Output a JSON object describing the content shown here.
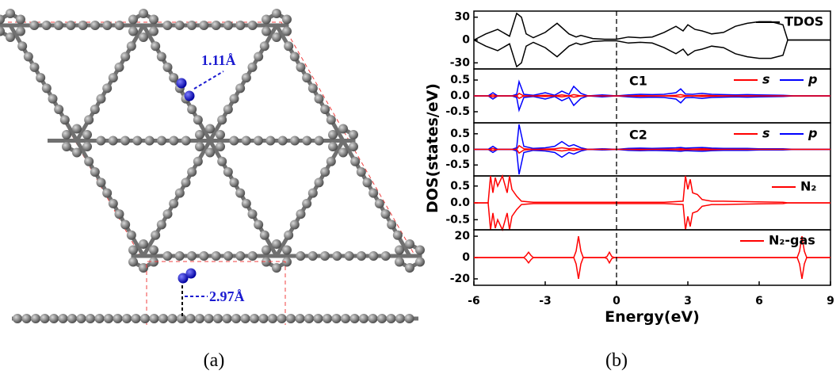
{
  "figure": {
    "panel_a_label": "(a)",
    "panel_b_label": "(b)",
    "bond_label_top": "1.11Å",
    "bond_label_side": "2.97Å",
    "ylabel": "DOS(states/eV)",
    "fermi_line": 0
  },
  "chart_data": [
    {
      "type": "line",
      "xlim": [
        -6,
        9
      ],
      "ylim": [
        -38,
        38
      ],
      "yticks": [
        30,
        0,
        -30
      ],
      "legend": "upper right",
      "x": [
        -6,
        -5.5,
        -5,
        -4.5,
        -4.2,
        -4,
        -3.8,
        -3.5,
        -3,
        -2.5,
        -2,
        -1.7,
        -1.5,
        -1,
        -0.5,
        0,
        0.5,
        1,
        1.5,
        2,
        2.5,
        2.8,
        3,
        3.3,
        3.6,
        4,
        4.5,
        5,
        5.5,
        6,
        6.5,
        7,
        7.2,
        7.5,
        8,
        9
      ],
      "series": [
        {
          "name": "TDOS",
          "color": "#000000",
          "values": [
            0,
            8,
            14,
            5,
            35,
            30,
            8,
            3,
            10,
            22,
            8,
            4,
            6,
            2,
            1,
            1,
            4,
            3,
            4,
            10,
            18,
            12,
            20,
            14,
            12,
            8,
            10,
            18,
            22,
            24,
            24,
            20,
            0,
            0,
            0,
            0
          ]
        },
        {
          "color": "#000000",
          "values": [
            0,
            -8,
            -14,
            -5,
            -35,
            -30,
            -8,
            -3,
            -10,
            -22,
            -8,
            -4,
            -6,
            -2,
            -1,
            -1,
            -4,
            -3,
            -4,
            -10,
            -18,
            -12,
            -20,
            -14,
            -12,
            -8,
            -10,
            -18,
            -22,
            -24,
            -24,
            -20,
            0,
            0,
            0,
            0
          ]
        }
      ]
    },
    {
      "type": "line",
      "label": "C1",
      "xlim": [
        -6,
        9
      ],
      "ylim": [
        -0.85,
        0.85
      ],
      "yticks": [
        0.5,
        {
          "value": 0,
          "label": "0.0"
        },
        -0.5
      ],
      "legend": "upper right",
      "x": [
        -6,
        -5.4,
        -5.2,
        -5.0,
        -4.4,
        -4.2,
        -4.1,
        -3.9,
        -3.5,
        -3.0,
        -2.6,
        -2.3,
        -2.0,
        -1.8,
        -1.5,
        -1.2,
        -0.6,
        0,
        0.5,
        1,
        1.5,
        2,
        2.5,
        2.7,
        2.9,
        3.2,
        3.6,
        4,
        4.5,
        5,
        5.5,
        6,
        7,
        7.5,
        9
      ],
      "series": [
        {
          "name": "s",
          "color": "#ff0000",
          "values": [
            0,
            0,
            0.03,
            0,
            0,
            0,
            0.08,
            0,
            0,
            0.02,
            0,
            0.03,
            0,
            0.04,
            0,
            0,
            0,
            0,
            0,
            0.01,
            0,
            0,
            0.02,
            0.04,
            0.01,
            0,
            0.02,
            0.01,
            0,
            0,
            0,
            0,
            0,
            0,
            0
          ]
        },
        {
          "name": "p",
          "color": "#0000ff",
          "values": [
            0,
            0,
            0.1,
            0,
            0,
            0.05,
            0.45,
            0.05,
            0.02,
            0.1,
            0.02,
            0.15,
            0.05,
            0.3,
            0.08,
            0,
            0.03,
            0,
            0.03,
            0.05,
            0.04,
            0.05,
            0.1,
            0.22,
            0.06,
            0.05,
            0.08,
            0.05,
            0.04,
            0.03,
            0.04,
            0.03,
            0.02,
            0,
            0
          ]
        },
        {
          "color": "#0000ff",
          "values": [
            0,
            0,
            -0.1,
            0,
            0,
            -0.05,
            -0.45,
            -0.05,
            -0.02,
            -0.1,
            -0.02,
            -0.15,
            -0.05,
            -0.3,
            -0.08,
            0,
            -0.03,
            0,
            -0.03,
            -0.05,
            -0.04,
            -0.05,
            -0.1,
            -0.22,
            -0.06,
            -0.05,
            -0.08,
            -0.05,
            -0.04,
            -0.03,
            -0.04,
            -0.03,
            -0.02,
            0,
            0
          ]
        },
        {
          "color": "#ff0000",
          "values": [
            0,
            0,
            -0.03,
            0,
            0,
            0,
            -0.08,
            0,
            0,
            -0.02,
            0,
            -0.03,
            0,
            -0.04,
            0,
            0,
            0,
            0,
            0,
            -0.01,
            0,
            0,
            -0.02,
            -0.04,
            -0.01,
            0,
            -0.02,
            -0.01,
            0,
            0,
            0,
            0,
            0,
            0,
            0
          ]
        }
      ]
    },
    {
      "type": "line",
      "label": "C2",
      "xlim": [
        -6,
        9
      ],
      "ylim": [
        -0.85,
        0.85
      ],
      "yticks": [
        0.5,
        {
          "value": 0,
          "label": "0.0"
        },
        -0.5
      ],
      "legend": "upper right",
      "x": [
        -6,
        -5.4,
        -5.2,
        -5.0,
        -4.4,
        -4.2,
        -4.1,
        -3.9,
        -3.5,
        -3.0,
        -2.6,
        -2.3,
        -2.0,
        -1.8,
        -1.5,
        -1.2,
        -0.6,
        0,
        0.5,
        1,
        1.5,
        2,
        2.5,
        2.7,
        2.9,
        3.2,
        3.6,
        4,
        4.5,
        5,
        5.5,
        6,
        7,
        7.5,
        9
      ],
      "series": [
        {
          "name": "s",
          "color": "#ff0000",
          "values": [
            0,
            0,
            0.03,
            0,
            0,
            0,
            0.12,
            0.02,
            0,
            0.01,
            0.02,
            0.05,
            0.02,
            0.03,
            0,
            0,
            0,
            0,
            0,
            0.01,
            0,
            0,
            0.01,
            0.02,
            0.01,
            0.01,
            0.02,
            0.01,
            0,
            0,
            0,
            0,
            0,
            0,
            0
          ]
        },
        {
          "name": "p",
          "color": "#0000ff",
          "values": [
            0,
            0,
            0.1,
            0,
            0,
            0.05,
            0.8,
            0.1,
            0.03,
            0.05,
            0.1,
            0.25,
            0.1,
            0.15,
            0.05,
            0,
            0.02,
            0,
            0.03,
            0.04,
            0.03,
            0.04,
            0.05,
            0.06,
            0.04,
            0.05,
            0.06,
            0.04,
            0.03,
            0.03,
            0.03,
            0.02,
            0.02,
            0,
            0
          ]
        },
        {
          "color": "#0000ff",
          "values": [
            0,
            0,
            -0.1,
            0,
            0,
            -0.05,
            -0.8,
            -0.1,
            -0.03,
            -0.05,
            -0.1,
            -0.25,
            -0.1,
            -0.15,
            -0.05,
            0,
            -0.02,
            0,
            -0.03,
            -0.04,
            -0.03,
            -0.04,
            -0.05,
            -0.06,
            -0.04,
            -0.05,
            -0.06,
            -0.04,
            -0.03,
            -0.03,
            -0.03,
            -0.02,
            -0.02,
            0,
            0
          ]
        },
        {
          "color": "#ff0000",
          "values": [
            0,
            0,
            -0.03,
            0,
            0,
            0,
            -0.12,
            -0.02,
            0,
            -0.01,
            -0.02,
            -0.05,
            -0.02,
            -0.03,
            0,
            0,
            0,
            0,
            0,
            -0.01,
            0,
            0,
            -0.01,
            -0.02,
            -0.01,
            -0.01,
            -0.02,
            -0.01,
            0,
            0,
            0,
            0,
            0,
            0,
            0
          ]
        }
      ]
    },
    {
      "type": "line",
      "xlim": [
        -6,
        9
      ],
      "ylim": [
        -0.8,
        0.8
      ],
      "yticks": [
        0.5,
        {
          "value": 0,
          "label": "0.0"
        },
        -0.5
      ],
      "legend": "upper right",
      "x": [
        -6,
        -5.4,
        -5.3,
        -5.2,
        -5.1,
        -5.0,
        -4.8,
        -4.6,
        -4.5,
        -4.4,
        -4.2,
        -4.0,
        -3.5,
        -2,
        0,
        2,
        2.8,
        2.9,
        3.0,
        3.1,
        3.2,
        3.4,
        3.6,
        4.0,
        4.5,
        5,
        6,
        7,
        7.2,
        9
      ],
      "series": [
        {
          "name": "N₂",
          "color": "#ff0000",
          "values": [
            0,
            0,
            0.8,
            0.3,
            0.75,
            0.5,
            0.8,
            0.3,
            0.8,
            0.4,
            0.2,
            0.05,
            0.02,
            0.02,
            0.02,
            0.02,
            0.05,
            0.8,
            0.4,
            0.7,
            0.3,
            0.25,
            0.1,
            0.05,
            0.05,
            0.04,
            0.03,
            0.02,
            0,
            0
          ]
        },
        {
          "color": "#ff0000",
          "values": [
            0,
            0,
            -0.8,
            -0.3,
            -0.75,
            -0.5,
            -0.8,
            -0.3,
            -0.8,
            -0.4,
            -0.2,
            -0.05,
            -0.02,
            -0.02,
            -0.02,
            -0.02,
            -0.05,
            -0.8,
            -0.4,
            -0.7,
            -0.3,
            -0.25,
            -0.1,
            -0.05,
            -0.05,
            -0.04,
            -0.03,
            -0.02,
            0,
            0
          ]
        }
      ]
    },
    {
      "type": "line",
      "xlim": [
        -6,
        9
      ],
      "ylim": [
        -26,
        26
      ],
      "yticks": [
        20,
        0,
        -20
      ],
      "legend": "upper right",
      "xticks": [
        -6,
        -3,
        0,
        3,
        6,
        9
      ],
      "xlabel": "Energy(eV)",
      "x": [
        -6,
        -3.9,
        -3.8,
        -3.7,
        -3.6,
        -3.5,
        -1.8,
        -1.7,
        -1.6,
        -1.5,
        -1.4,
        -0.5,
        -0.4,
        -0.3,
        -0.2,
        -0.1,
        7.6,
        7.7,
        7.8,
        7.9,
        8.0,
        9
      ],
      "series": [
        {
          "name": "N₂-gas",
          "color": "#ff0000",
          "values": [
            0,
            0,
            2,
            5,
            2,
            0,
            0,
            6,
            20,
            6,
            0,
            0,
            1,
            5,
            1,
            0,
            0,
            6,
            20,
            6,
            0,
            0
          ]
        },
        {
          "color": "#ff0000",
          "values": [
            0,
            0,
            -2,
            -5,
            -2,
            0,
            0,
            -6,
            -20,
            -6,
            0,
            0,
            -1,
            -5,
            -1,
            0,
            0,
            -6,
            -20,
            -6,
            0,
            0
          ]
        }
      ]
    }
  ]
}
